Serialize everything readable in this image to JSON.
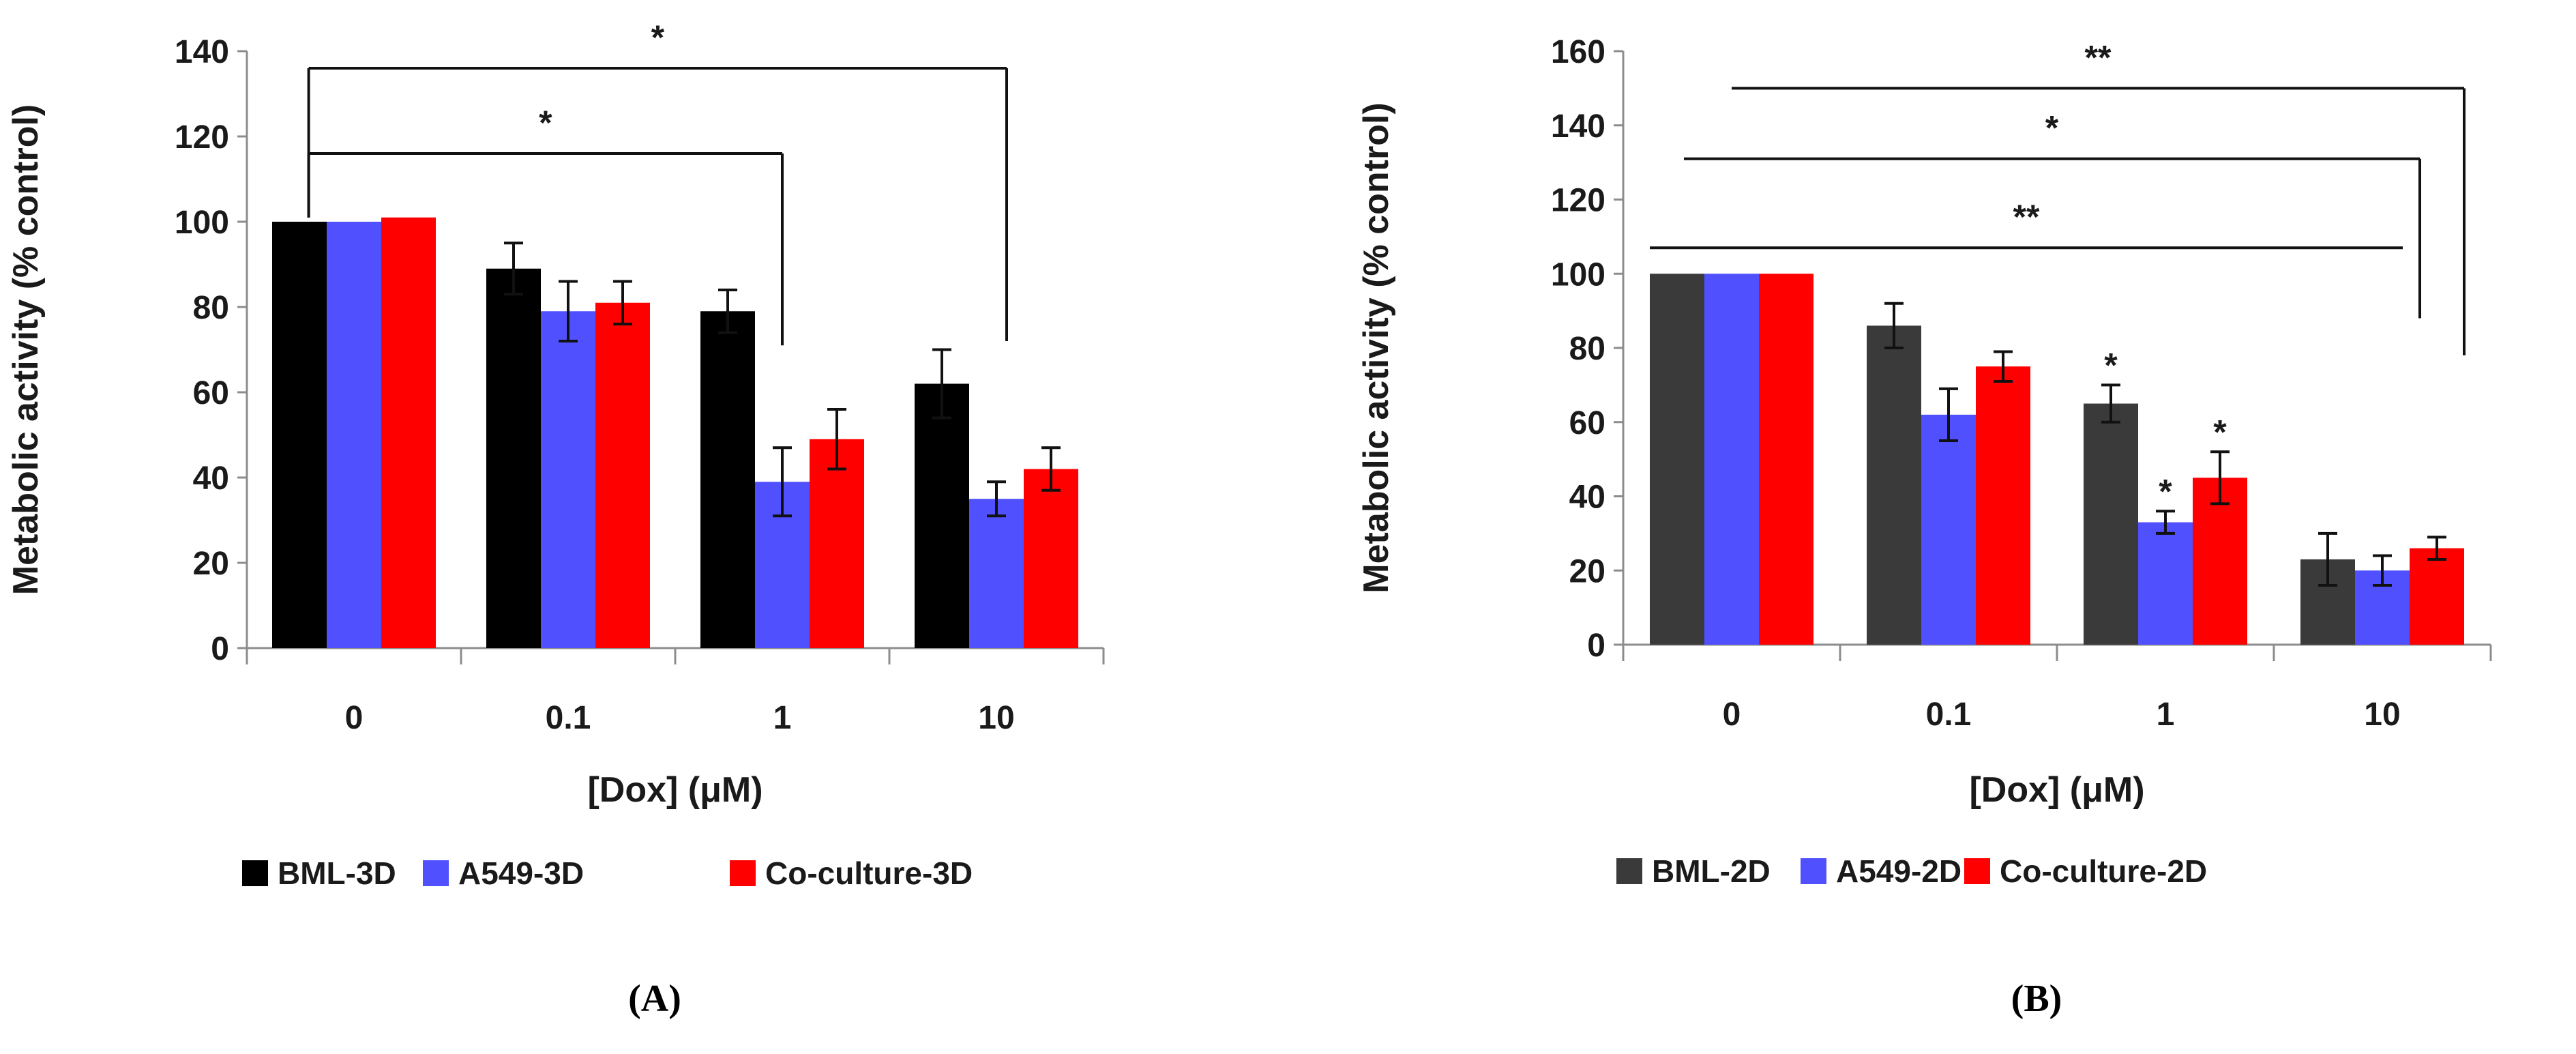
{
  "chart_data": [
    {
      "type": "bar",
      "panel_label": "(A)",
      "categories": [
        "0",
        "0.1",
        "1",
        "10"
      ],
      "xlabel": "[Dox] (μM)",
      "ylabel": "Metabolic activity (% control)",
      "ylim": [
        0,
        140
      ],
      "yticks": [
        0,
        20,
        40,
        60,
        80,
        100,
        120,
        140
      ],
      "grid": false,
      "legend_position": "bottom",
      "series": [
        {
          "name": "BML-3D",
          "color": "#000000",
          "values": [
            100,
            89,
            79,
            62
          ],
          "errors": [
            0,
            6,
            5,
            8
          ]
        },
        {
          "name": "A549-3D",
          "color": "#5050ff",
          "values": [
            100,
            79,
            39,
            35
          ],
          "errors": [
            0,
            7,
            8,
            4
          ]
        },
        {
          "name": "Co-culture-3D",
          "color": "#ff0000",
          "values": [
            101,
            81,
            49,
            42
          ],
          "errors": [
            0,
            5,
            7,
            5
          ]
        }
      ],
      "brackets": [
        {
          "from": "0",
          "to": "1",
          "y": 116,
          "drop_to": 71,
          "label": "*"
        },
        {
          "from": "0",
          "to": "10",
          "y": 136,
          "drop_to": 72,
          "label": "*"
        }
      ],
      "point_stars": []
    },
    {
      "type": "bar",
      "panel_label": "(B)",
      "categories": [
        "0",
        "0.1",
        "1",
        "10"
      ],
      "xlabel": "[Dox] (μM)",
      "ylabel": "Metabolic activity (% control)",
      "ylim": [
        0,
        160
      ],
      "yticks": [
        0,
        20,
        40,
        60,
        80,
        100,
        120,
        140,
        160
      ],
      "grid": false,
      "legend_position": "bottom",
      "series": [
        {
          "name": "BML-2D",
          "color": "#3a3a3a",
          "values": [
            100,
            86,
            65,
            23
          ],
          "errors": [
            0,
            6,
            5,
            7
          ]
        },
        {
          "name": "A549-2D",
          "color": "#5050ff",
          "values": [
            100,
            62,
            33,
            20
          ],
          "errors": [
            0,
            7,
            3,
            4
          ]
        },
        {
          "name": "Co-culture-2D",
          "color": "#ff0000",
          "values": [
            100,
            75,
            45,
            26
          ],
          "errors": [
            0,
            4,
            7,
            3
          ]
        }
      ],
      "brackets": [
        {
          "from": "0",
          "to": "10",
          "y": 150,
          "drop_to": 78,
          "label": "**",
          "from_series": "Co-culture-2D",
          "to_series": "Co-culture-2D"
        },
        {
          "from": "0",
          "to": "10",
          "y": 131,
          "drop_to": 88,
          "label": "*",
          "from_series": "A549-2D",
          "to_series": "A549-2D"
        },
        {
          "from": "0",
          "to": "10",
          "y": 107,
          "drop_to": 107,
          "label": "**",
          "from_series": "BML-2D",
          "to_series": "BML-2D"
        }
      ],
      "point_stars": [
        {
          "category": "1",
          "series": "BML-2D",
          "label": "*"
        },
        {
          "category": "1",
          "series": "A549-2D",
          "label": "*"
        },
        {
          "category": "1",
          "series": "Co-culture-2D",
          "label": "*"
        }
      ]
    }
  ]
}
